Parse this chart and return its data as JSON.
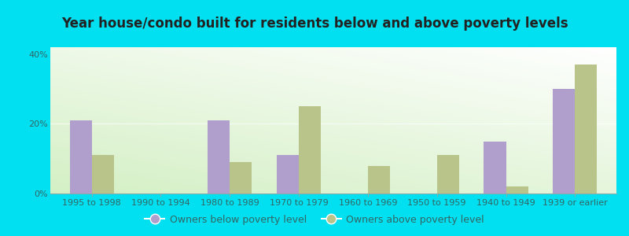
{
  "title": "Year house/condo built for residents below and above poverty levels",
  "categories": [
    "1995 to 1998",
    "1990 to 1994",
    "1980 to 1989",
    "1970 to 1979",
    "1960 to 1969",
    "1950 to 1959",
    "1940 to 1949",
    "1939 or earlier"
  ],
  "below_poverty": [
    21.0,
    0.0,
    21.0,
    11.0,
    0.0,
    0.0,
    15.0,
    30.0
  ],
  "above_poverty": [
    11.0,
    0.0,
    9.0,
    25.0,
    8.0,
    11.0,
    2.0,
    37.0
  ],
  "below_color": "#b09fcc",
  "above_color": "#b8c48a",
  "bg_color_topleft": "#d0e8c8",
  "bg_color_topright": "#f0fff0",
  "bg_color_bottom": "#e8f8e0",
  "ylim": [
    0,
    42
  ],
  "yticks": [
    0,
    20,
    40
  ],
  "ytick_labels": [
    "0%",
    "20%",
    "40%"
  ],
  "bar_width": 0.32,
  "legend_below": "Owners below poverty level",
  "legend_above": "Owners above poverty level",
  "outer_bg": "#00e0f0",
  "title_fontsize": 12,
  "tick_fontsize": 8
}
